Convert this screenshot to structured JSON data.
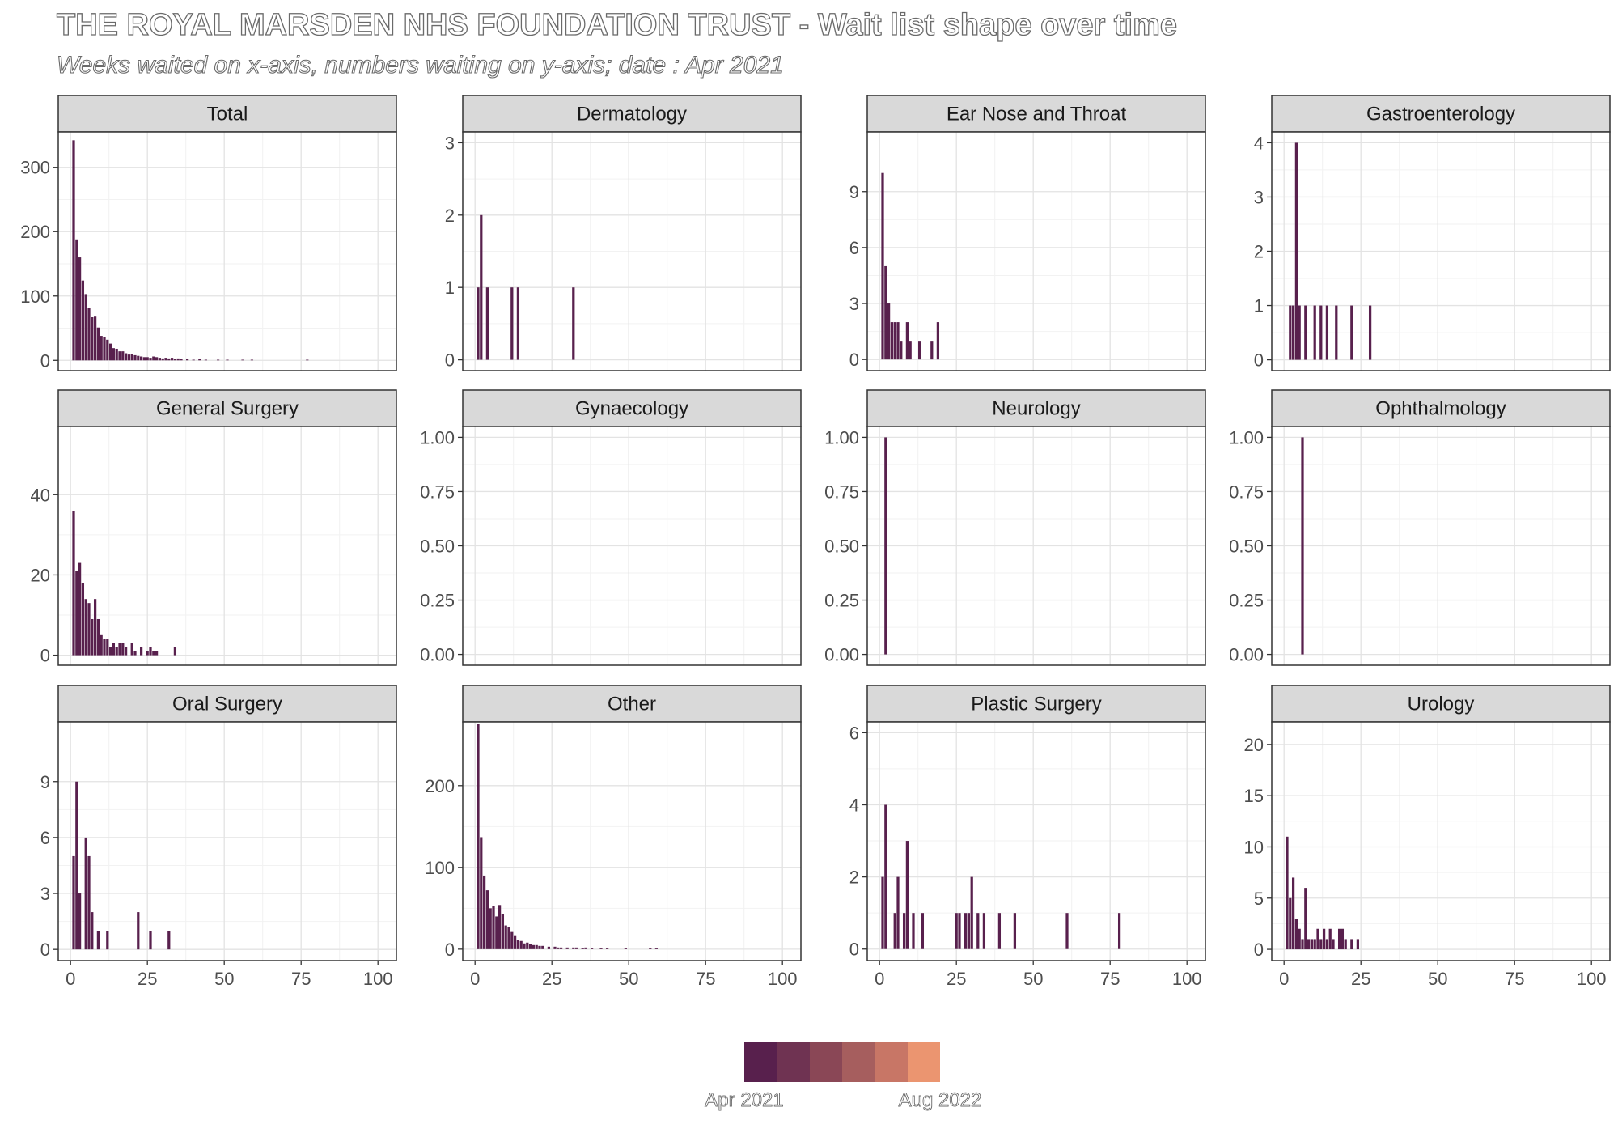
{
  "title": "THE ROYAL MARSDEN NHS FOUNDATION TRUST - Wait list shape over time",
  "subtitle": "Weeks waited on x-axis, numbers waiting on y-axis; date : Apr 2021",
  "legend": {
    "start_label": "Apr 2021",
    "end_label": "Aug 2022",
    "colors": [
      "#58204d",
      "#6f3352",
      "#8a4756",
      "#a65e5e",
      "#c87666",
      "#eb9570"
    ]
  },
  "chart_data": {
    "type": "bar",
    "layout": "facet-grid 3x4",
    "bar_color": "#58204d",
    "x_ticks": [
      0,
      25,
      50,
      75,
      100
    ],
    "x_range": [
      -4,
      106
    ],
    "grid": true,
    "panels": [
      {
        "name": "Total",
        "y_ticks": [
          0,
          100,
          200,
          300
        ],
        "y_tick_labels": [
          "0",
          "100",
          "200",
          "300"
        ],
        "ylim": [
          -16,
          355
        ],
        "points": [
          [
            1,
            342
          ],
          [
            2,
            188
          ],
          [
            3,
            160
          ],
          [
            4,
            124
          ],
          [
            5,
            103
          ],
          [
            6,
            82
          ],
          [
            7,
            67
          ],
          [
            8,
            68
          ],
          [
            9,
            51
          ],
          [
            10,
            38
          ],
          [
            11,
            36
          ],
          [
            12,
            32
          ],
          [
            13,
            26
          ],
          [
            14,
            19
          ],
          [
            15,
            18
          ],
          [
            16,
            14
          ],
          [
            17,
            14
          ],
          [
            18,
            11
          ],
          [
            19,
            9
          ],
          [
            20,
            10
          ],
          [
            21,
            8
          ],
          [
            22,
            7
          ],
          [
            23,
            6
          ],
          [
            24,
            5
          ],
          [
            25,
            5
          ],
          [
            26,
            4
          ],
          [
            27,
            6
          ],
          [
            28,
            5
          ],
          [
            29,
            4
          ],
          [
            30,
            3
          ],
          [
            31,
            4
          ],
          [
            32,
            3
          ],
          [
            33,
            4
          ],
          [
            34,
            2
          ],
          [
            35,
            3
          ],
          [
            36,
            2
          ],
          [
            38,
            2
          ],
          [
            40,
            1
          ],
          [
            42,
            2
          ],
          [
            44,
            1
          ],
          [
            48,
            1
          ],
          [
            51,
            1
          ],
          [
            56,
            1
          ],
          [
            59,
            1
          ],
          [
            77,
            1
          ]
        ]
      },
      {
        "name": "Dermatology",
        "y_ticks": [
          0,
          1,
          2,
          3
        ],
        "y_tick_labels": [
          "0",
          "1",
          "2",
          "3"
        ],
        "ylim": [
          -0.15,
          3.15
        ],
        "points": [
          [
            1,
            1
          ],
          [
            2,
            2
          ],
          [
            4,
            1
          ],
          [
            12,
            1
          ],
          [
            14,
            1
          ],
          [
            32,
            1
          ]
        ]
      },
      {
        "name": "Ear Nose and Throat",
        "y_ticks": [
          0,
          3,
          6,
          9
        ],
        "y_tick_labels": [
          "0",
          "3",
          "6",
          "9"
        ],
        "ylim": [
          -0.6,
          12.2
        ],
        "points": [
          [
            1,
            10
          ],
          [
            2,
            5
          ],
          [
            3,
            3
          ],
          [
            4,
            2
          ],
          [
            5,
            2
          ],
          [
            6,
            2
          ],
          [
            7,
            1
          ],
          [
            9,
            2
          ],
          [
            10,
            1
          ],
          [
            13,
            1
          ],
          [
            17,
            1
          ],
          [
            19,
            2
          ]
        ]
      },
      {
        "name": "Gastroenterology",
        "y_ticks": [
          0,
          1,
          2,
          3,
          4
        ],
        "y_tick_labels": [
          "0",
          "1",
          "2",
          "3",
          "4"
        ],
        "ylim": [
          -0.2,
          4.2
        ],
        "points": [
          [
            2,
            1
          ],
          [
            3,
            1
          ],
          [
            4,
            4
          ],
          [
            5,
            1
          ],
          [
            7,
            1
          ],
          [
            10,
            1
          ],
          [
            12,
            1
          ],
          [
            14,
            1
          ],
          [
            17,
            1
          ],
          [
            22,
            1
          ],
          [
            28,
            1
          ]
        ]
      },
      {
        "name": "General Surgery",
        "y_ticks": [
          0,
          20,
          40
        ],
        "y_tick_labels": [
          "0",
          "20",
          "40"
        ],
        "ylim": [
          -2.5,
          57
        ],
        "points": [
          [
            1,
            36
          ],
          [
            2,
            21
          ],
          [
            3,
            23
          ],
          [
            4,
            18
          ],
          [
            5,
            14
          ],
          [
            6,
            13
          ],
          [
            7,
            9
          ],
          [
            8,
            14
          ],
          [
            9,
            9
          ],
          [
            10,
            5
          ],
          [
            11,
            4
          ],
          [
            12,
            4
          ],
          [
            13,
            2
          ],
          [
            14,
            3
          ],
          [
            15,
            2
          ],
          [
            16,
            3
          ],
          [
            17,
            3
          ],
          [
            18,
            2
          ],
          [
            20,
            3
          ],
          [
            21,
            1
          ],
          [
            23,
            2
          ],
          [
            25,
            1
          ],
          [
            26,
            2
          ],
          [
            27,
            1
          ],
          [
            28,
            1
          ],
          [
            34,
            2
          ]
        ]
      },
      {
        "name": "Gynaecology",
        "y_ticks": [
          0,
          0.25,
          0.5,
          0.75,
          1
        ],
        "y_tick_labels": [
          "0.00",
          "0.25",
          "0.50",
          "0.75",
          "1.00"
        ],
        "ylim": [
          -0.05,
          1.05
        ],
        "points": []
      },
      {
        "name": "Neurology",
        "y_ticks": [
          0,
          0.25,
          0.5,
          0.75,
          1
        ],
        "y_tick_labels": [
          "0.00",
          "0.25",
          "0.50",
          "0.75",
          "1.00"
        ],
        "ylim": [
          -0.05,
          1.05
        ],
        "points": [
          [
            2,
            1
          ]
        ]
      },
      {
        "name": "Ophthalmology",
        "y_ticks": [
          0,
          0.25,
          0.5,
          0.75,
          1
        ],
        "y_tick_labels": [
          "0.00",
          "0.25",
          "0.50",
          "0.75",
          "1.00"
        ],
        "ylim": [
          -0.05,
          1.05
        ],
        "points": [
          [
            6,
            1
          ]
        ]
      },
      {
        "name": "Oral Surgery",
        "y_ticks": [
          0,
          3,
          6,
          9
        ],
        "y_tick_labels": [
          "0",
          "3",
          "6",
          "9"
        ],
        "ylim": [
          -0.6,
          12.2
        ],
        "points": [
          [
            1,
            5
          ],
          [
            2,
            9
          ],
          [
            3,
            3
          ],
          [
            5,
            6
          ],
          [
            6,
            5
          ],
          [
            7,
            2
          ],
          [
            9,
            1
          ],
          [
            12,
            1
          ],
          [
            22,
            2
          ],
          [
            26,
            1
          ],
          [
            32,
            1
          ]
        ]
      },
      {
        "name": "Other",
        "y_ticks": [
          0,
          100,
          200
        ],
        "y_tick_labels": [
          "0",
          "100",
          "200"
        ],
        "ylim": [
          -14,
          278
        ],
        "points": [
          [
            1,
            276
          ],
          [
            2,
            137
          ],
          [
            3,
            90
          ],
          [
            4,
            72
          ],
          [
            5,
            50
          ],
          [
            6,
            53
          ],
          [
            7,
            40
          ],
          [
            8,
            54
          ],
          [
            9,
            43
          ],
          [
            10,
            29
          ],
          [
            11,
            27
          ],
          [
            12,
            21
          ],
          [
            13,
            17
          ],
          [
            14,
            11
          ],
          [
            15,
            10
          ],
          [
            16,
            7
          ],
          [
            17,
            8
          ],
          [
            18,
            6
          ],
          [
            19,
            5
          ],
          [
            20,
            5
          ],
          [
            21,
            4
          ],
          [
            22,
            4
          ],
          [
            24,
            3
          ],
          [
            26,
            3
          ],
          [
            27,
            2
          ],
          [
            28,
            2
          ],
          [
            30,
            2
          ],
          [
            32,
            2
          ],
          [
            33,
            2
          ],
          [
            35,
            1
          ],
          [
            36,
            2
          ],
          [
            38,
            1
          ],
          [
            41,
            1
          ],
          [
            43,
            1
          ],
          [
            49,
            1
          ],
          [
            57,
            1
          ],
          [
            59,
            1
          ]
        ]
      },
      {
        "name": "Plastic Surgery",
        "y_ticks": [
          0,
          2,
          4,
          6
        ],
        "y_tick_labels": [
          "0",
          "2",
          "4",
          "6"
        ],
        "ylim": [
          -0.32,
          6.3
        ],
        "points": [
          [
            1,
            2
          ],
          [
            2,
            4
          ],
          [
            5,
            1
          ],
          [
            6,
            2
          ],
          [
            8,
            1
          ],
          [
            9,
            3
          ],
          [
            11,
            1
          ],
          [
            14,
            1
          ],
          [
            25,
            1
          ],
          [
            26,
            1
          ],
          [
            28,
            1
          ],
          [
            29,
            1
          ],
          [
            30,
            2
          ],
          [
            32,
            1
          ],
          [
            34,
            1
          ],
          [
            39,
            1
          ],
          [
            44,
            1
          ],
          [
            61,
            1
          ],
          [
            78,
            1
          ]
        ]
      },
      {
        "name": "Urology",
        "y_ticks": [
          0,
          5,
          10,
          15,
          20
        ],
        "y_tick_labels": [
          "0",
          "5",
          "10",
          "15",
          "20"
        ],
        "ylim": [
          -1.1,
          22.2
        ],
        "points": [
          [
            1,
            11
          ],
          [
            2,
            5
          ],
          [
            3,
            7
          ],
          [
            4,
            3
          ],
          [
            5,
            2
          ],
          [
            6,
            1
          ],
          [
            7,
            6
          ],
          [
            8,
            1
          ],
          [
            9,
            1
          ],
          [
            10,
            1
          ],
          [
            11,
            2
          ],
          [
            12,
            1
          ],
          [
            13,
            2
          ],
          [
            14,
            1
          ],
          [
            15,
            2
          ],
          [
            16,
            1
          ],
          [
            18,
            2
          ],
          [
            19,
            2
          ],
          [
            20,
            1
          ],
          [
            22,
            1
          ],
          [
            24,
            1
          ]
        ]
      }
    ]
  }
}
